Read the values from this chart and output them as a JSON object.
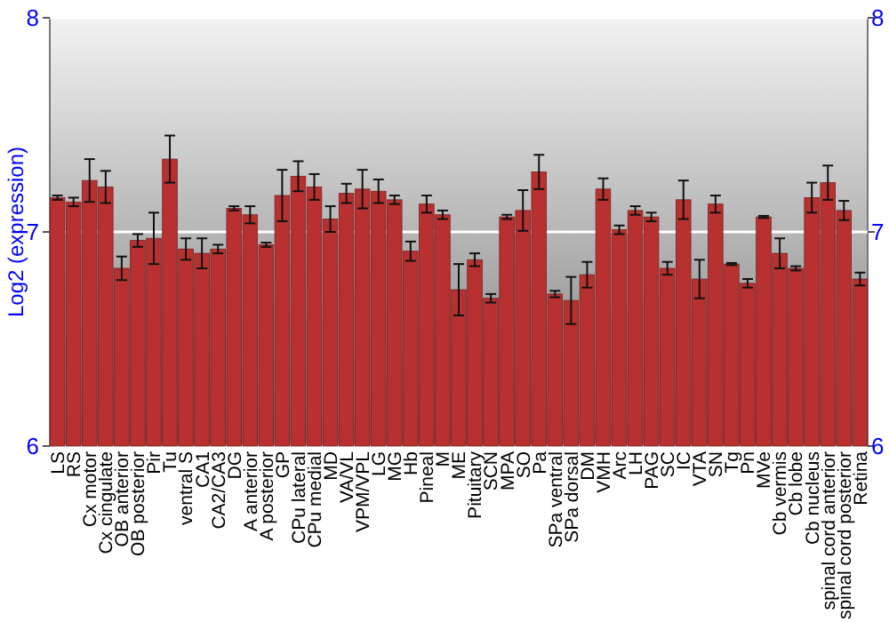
{
  "chart_data": {
    "type": "bar",
    "ylabel": "Log2 (expression)",
    "categories": [
      "LS",
      "RS",
      "Cx motor",
      "Cx cingulate",
      "OB anterior",
      "OB posterior",
      "Pir",
      "Tu",
      "ventral S",
      "CA1",
      "CA2/CA3",
      "DG",
      "A anterior",
      "A posterior",
      "GP",
      "CPu lateral",
      "CPu medial",
      "MD",
      "VA/VL",
      "VPM/VPL",
      "LG",
      "MG",
      "Hb",
      "Pineal",
      "M",
      "ME",
      "Pituitary",
      "SCN",
      "MPA",
      "SO",
      "Pa",
      "SPa ventral",
      "SPa dorsal",
      "DM",
      "VMH",
      "Arc",
      "LH",
      "PAG",
      "SC",
      "IC",
      "VTA",
      "SN",
      "Tg",
      "Pn",
      "MVe",
      "Cb vermis",
      "Cb lobe",
      "Cb nucleus",
      "spinal cord anterior",
      "spinal cord posterior",
      "Retina"
    ],
    "values": [
      7.16,
      7.14,
      7.24,
      7.21,
      6.83,
      6.96,
      6.97,
      7.34,
      6.92,
      6.9,
      6.92,
      7.11,
      7.08,
      6.94,
      7.17,
      7.26,
      7.21,
      7.06,
      7.18,
      7.2,
      7.19,
      7.15,
      6.91,
      7.13,
      7.08,
      6.73,
      6.87,
      6.69,
      7.07,
      7.1,
      7.28,
      6.71,
      6.68,
      6.8,
      7.2,
      7.01,
      7.1,
      7.07,
      6.83,
      7.15,
      6.78,
      7.13,
      6.85,
      6.76,
      7.07,
      6.9,
      6.83,
      7.16,
      7.23,
      7.1,
      6.78
    ],
    "errors": [
      0.01,
      0.02,
      0.1,
      0.075,
      0.055,
      0.03,
      0.12,
      0.11,
      0.05,
      0.07,
      0.02,
      0.01,
      0.04,
      0.01,
      0.12,
      0.07,
      0.06,
      0.06,
      0.045,
      0.09,
      0.055,
      0.02,
      0.045,
      0.04,
      0.02,
      0.12,
      0.03,
      0.02,
      0.01,
      0.095,
      0.08,
      0.015,
      0.11,
      0.06,
      0.05,
      0.02,
      0.02,
      0.02,
      0.03,
      0.09,
      0.09,
      0.04,
      0.005,
      0.02,
      0.005,
      0.07,
      0.01,
      0.07,
      0.08,
      0.045,
      0.03
    ],
    "color": "#b83030",
    "ylim": [
      6,
      8
    ],
    "yticks": [
      6,
      7,
      8
    ],
    "y2lim": [
      6,
      8
    ],
    "y2ticks": [
      6,
      7,
      8
    ],
    "grid": "y"
  }
}
